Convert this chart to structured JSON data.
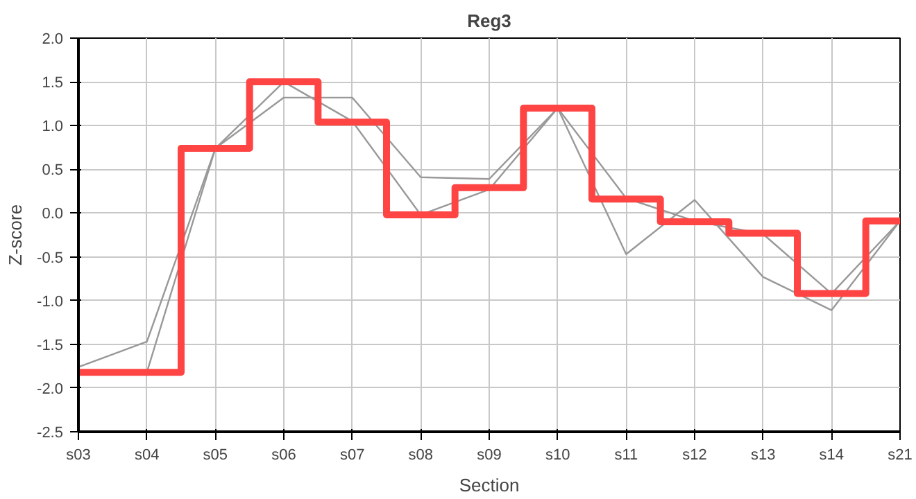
{
  "chart_data": {
    "type": "line",
    "title": "Reg3",
    "xlabel": "Section",
    "ylabel": "Z-score",
    "categories": [
      "s03",
      "s04",
      "s05",
      "s06",
      "s07",
      "s08",
      "s09",
      "s10",
      "s11",
      "s12",
      "s13",
      "s14",
      "s21"
    ],
    "series": [
      {
        "color": "#999999",
        "values": [
          -1.76,
          -1.47,
          0.74,
          1.32,
          1.32,
          0.41,
          0.39,
          1.2,
          -0.47,
          0.15,
          -0.73,
          -1.11,
          -0.09
        ]
      },
      {
        "color": "#999999",
        "values": [
          -1.82,
          -1.82,
          0.74,
          1.5,
          1.05,
          -0.02,
          0.27,
          1.2,
          0.17,
          -0.09,
          -0.24,
          -0.92,
          -0.09
        ]
      },
      {
        "type": "step",
        "color": "#ff4444",
        "values": [
          -1.82,
          -1.82,
          0.74,
          1.5,
          1.04,
          -0.02,
          0.29,
          1.2,
          0.16,
          -0.1,
          -0.23,
          -0.92,
          -0.09
        ]
      }
    ],
    "ylim": [
      -2.5,
      2.0
    ],
    "yticks": [
      {
        "value": -2.5,
        "label": "-2.5"
      },
      {
        "value": -2.0,
        "label": "-2.0"
      },
      {
        "value": -1.5,
        "label": "-1.5"
      },
      {
        "value": -1.0,
        "label": "-1.0"
      },
      {
        "value": -0.5,
        "label": "-0.5"
      },
      {
        "value": 0.0,
        "label": "0.0"
      },
      {
        "value": 0.5,
        "label": "0.5"
      },
      {
        "value": 1.0,
        "label": "1.0"
      },
      {
        "value": 1.5,
        "label": "1.5"
      },
      {
        "value": 2.0,
        "label": "2.0"
      }
    ],
    "grid": true,
    "marker": "none",
    "line_style": "solid"
  }
}
